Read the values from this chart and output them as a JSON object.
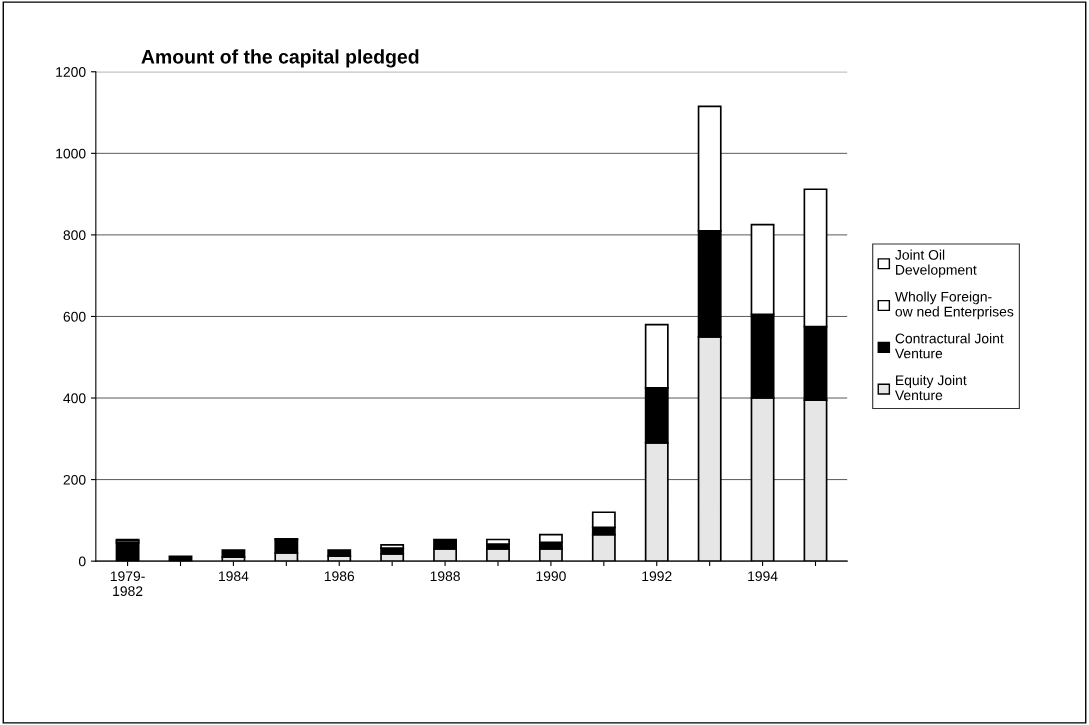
{
  "chart_data": {
    "type": "bar",
    "title": "Amount of the capital pledged",
    "stacked": true,
    "categories": [
      "1979-\n1982",
      null,
      "1984",
      null,
      "1986",
      null,
      "1988",
      null,
      "1990",
      null,
      "1992",
      null,
      "1994",
      null
    ],
    "series": [
      {
        "name": "Equity Joint\nVenture",
        "color": "#e6e6e6",
        "values": [
          null,
          null,
          10,
          20,
          12,
          18,
          30,
          30,
          30,
          65,
          290,
          550,
          400,
          395
        ]
      },
      {
        "name": "Contractural Joint\nVenture",
        "color": "#000000",
        "values": [
          45,
          12,
          17,
          33,
          15,
          14,
          23,
          12,
          16,
          18,
          135,
          260,
          205,
          180
        ]
      },
      {
        "name": "Wholly Foreign-\now ned Enterprises",
        "color": "#ffffff",
        "values": [
          5,
          null,
          null,
          2,
          null,
          8,
          null,
          11,
          19,
          37,
          155,
          305,
          220,
          337
        ]
      },
      {
        "name": "Joint Oil\nDevelopment",
        "color": "#ffffff",
        "values": [
          3,
          null,
          null,
          null,
          null,
          null,
          null,
          null,
          null,
          null,
          null,
          null,
          null,
          null
        ]
      }
    ],
    "ylim": [
      0,
      1200
    ],
    "yticks": [
      0,
      200,
      400,
      600,
      800,
      1000,
      1200
    ],
    "grid": "y",
    "legend": "right"
  }
}
